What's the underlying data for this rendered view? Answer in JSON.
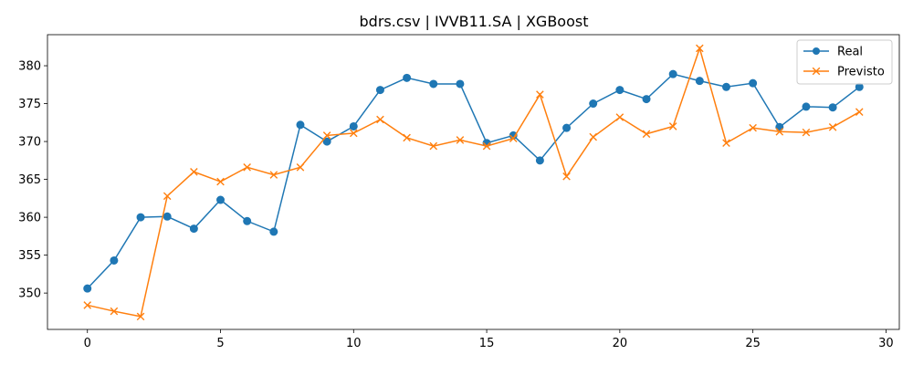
{
  "chart_data": {
    "type": "line",
    "title": "bdrs.csv | IVVB11.SA | XGBoost",
    "xlabel": "",
    "ylabel": "",
    "xlim": [
      -1.5,
      30.5
    ],
    "ylim": [
      345.2,
      384.1
    ],
    "xticks": [
      0,
      5,
      10,
      15,
      20,
      25,
      30
    ],
    "yticks": [
      350,
      355,
      360,
      365,
      370,
      375,
      380
    ],
    "legend_position": "top-right",
    "grid": false,
    "x": [
      0,
      1,
      2,
      3,
      4,
      5,
      6,
      7,
      8,
      9,
      10,
      11,
      12,
      13,
      14,
      15,
      16,
      17,
      18,
      19,
      20,
      21,
      22,
      23,
      24,
      25,
      26,
      27,
      28,
      29
    ],
    "series": [
      {
        "name": "Real",
        "color": "#1f77b4",
        "marker": "circle",
        "values": [
          350.6,
          354.3,
          360.0,
          360.1,
          358.5,
          362.3,
          359.5,
          358.1,
          372.2,
          370.0,
          372.0,
          376.8,
          378.4,
          377.6,
          377.6,
          369.8,
          370.8,
          367.5,
          371.8,
          375.0,
          376.8,
          375.6,
          378.9,
          378.0,
          377.2,
          377.7,
          371.9,
          374.6,
          374.5,
          377.2
        ]
      },
      {
        "name": "Previsto",
        "color": "#ff7f0e",
        "marker": "x",
        "values": [
          348.4,
          347.6,
          346.9,
          362.8,
          366.0,
          364.7,
          366.6,
          365.6,
          366.6,
          370.8,
          371.1,
          372.9,
          370.5,
          369.4,
          370.2,
          369.4,
          370.4,
          376.2,
          365.4,
          370.6,
          373.2,
          371.0,
          372.0,
          382.3,
          369.8,
          371.8,
          371.3,
          371.2,
          371.9,
          373.9
        ]
      }
    ]
  }
}
